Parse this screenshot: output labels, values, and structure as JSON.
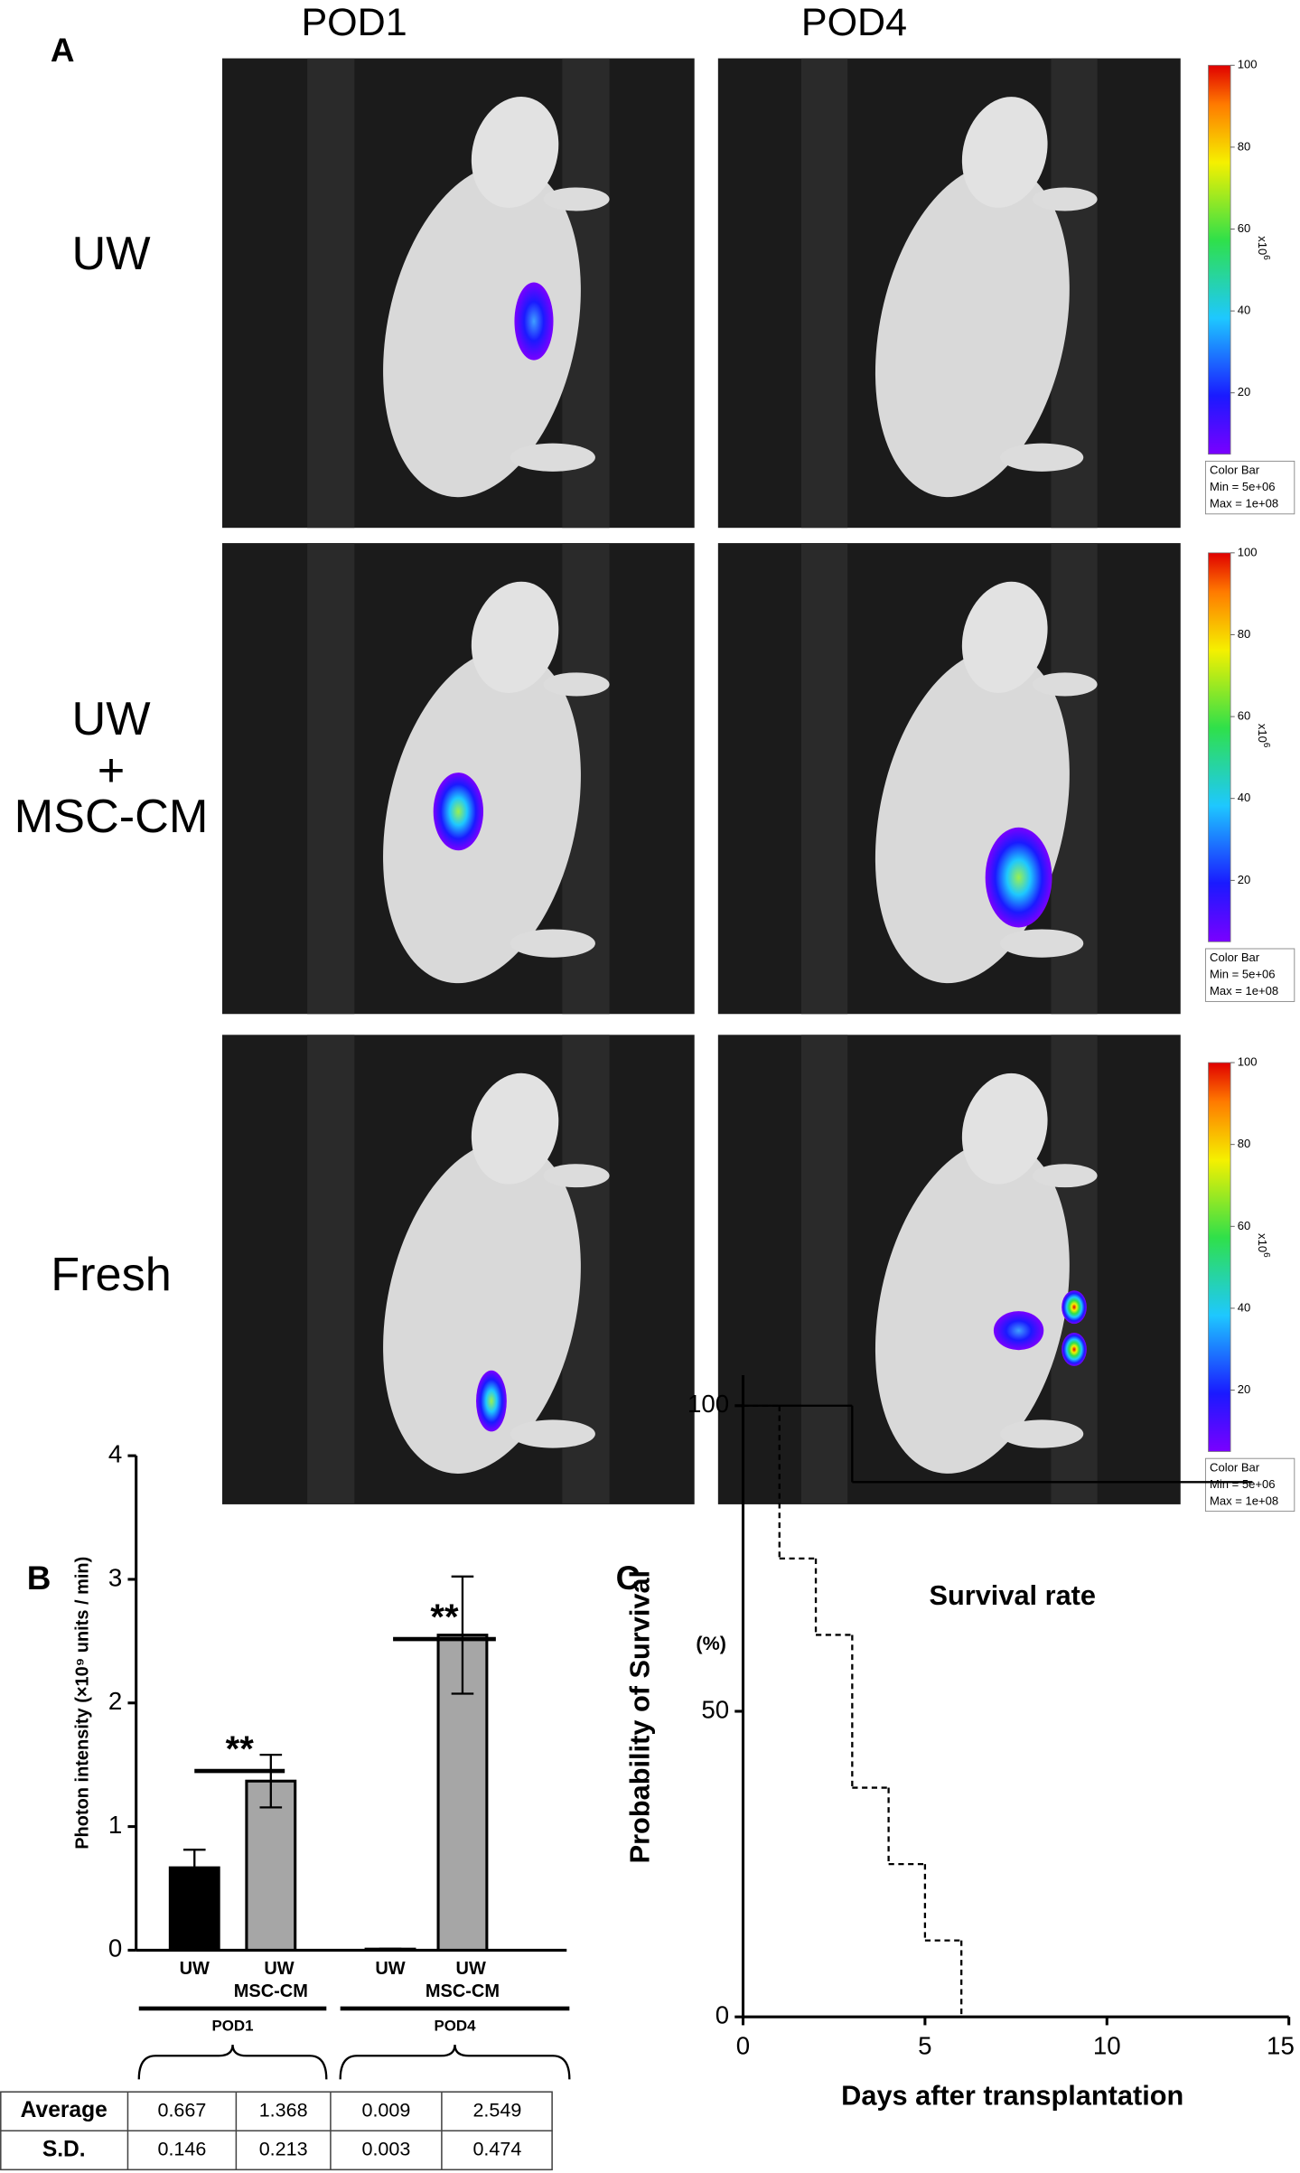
{
  "panel_a": {
    "label": "A",
    "columns": [
      "POD1",
      "POD4"
    ],
    "rows": [
      [
        "UW"
      ],
      [
        "UW",
        "+",
        "MSC-CM"
      ],
      [
        "Fresh"
      ]
    ],
    "colorbar": {
      "lim": [
        5,
        100
      ],
      "ticks": [
        20,
        40,
        60,
        80,
        100
      ],
      "unit": "x10",
      "exponent": "6",
      "legend": [
        "Color Bar",
        "Min = 5e+06",
        "Max = 1e+08"
      ]
    }
  },
  "chart_data": [
    {
      "type": "bar",
      "panel": "B",
      "ylabel": "Photon intensity (×10⁹ units / min)",
      "categories": [
        [
          "UW"
        ],
        [
          "UW",
          "MSC-CM"
        ],
        [
          "UW"
        ],
        [
          "UW",
          "MSC-CM"
        ]
      ],
      "groups": [
        "POD1",
        "POD4"
      ],
      "values": [
        0.667,
        1.368,
        0.009,
        2.549
      ],
      "errors": [
        0.146,
        0.213,
        0.003,
        0.474
      ],
      "colors": [
        "#000000",
        "#a6a6a6",
        "#000000",
        "#a6a6a6"
      ],
      "ylim": [
        0,
        4
      ],
      "yticks": [
        0,
        1,
        2,
        3,
        4
      ],
      "significance": [
        "**",
        "**"
      ],
      "table_rows": [
        "Average",
        "S.D."
      ]
    },
    {
      "type": "step",
      "panel": "C",
      "title": "Survival rate",
      "yunit": "(%)",
      "ylabel": "Probability of Survival",
      "xlabel": "Days after transplantation",
      "xlim": [
        0,
        15
      ],
      "xticks": [
        0,
        5,
        10,
        15
      ],
      "ylim": [
        0,
        105
      ],
      "yticks": [
        0,
        50,
        100
      ],
      "series": [
        {
          "color": "#000000",
          "dash": false,
          "x": [
            0,
            3,
            14
          ],
          "values": [
            100,
            87.5,
            87.5
          ]
        },
        {
          "color": "#000000",
          "dash": true,
          "x": [
            0,
            1,
            2,
            3,
            4,
            5,
            6
          ],
          "values": [
            100,
            75,
            62.5,
            37.5,
            25,
            12.5,
            0
          ]
        }
      ]
    }
  ]
}
